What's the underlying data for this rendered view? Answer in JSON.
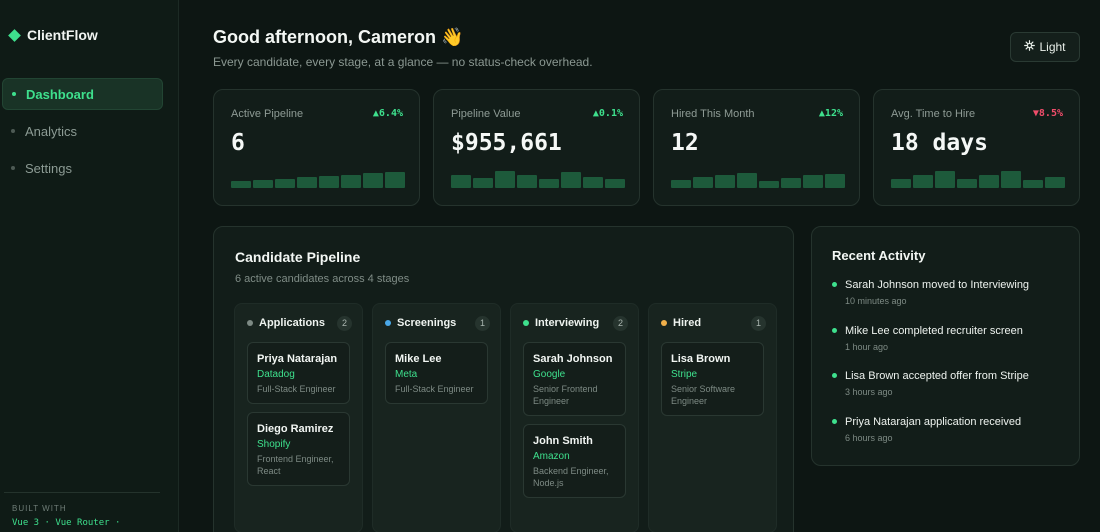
{
  "app": {
    "name": "ClientFlow"
  },
  "sidebar": {
    "items": [
      {
        "label": "Dashboard",
        "active": true
      },
      {
        "label": "Analytics",
        "active": false
      },
      {
        "label": "Settings",
        "active": false
      }
    ],
    "built_with_label": "BUILT WITH",
    "built_with_stack": "Vue 3 · Vue Router ·"
  },
  "header": {
    "greeting": "Good afternoon, Cameron",
    "greeting_emoji": "👋",
    "subtitle": "Every candidate, every stage, at a glance — no status-check overhead.",
    "theme_toggle": {
      "icon": "sun-icon",
      "label": "Light"
    }
  },
  "stats": [
    {
      "label": "Active Pipeline",
      "value": "6",
      "delta": "▲6.4%",
      "trend": "up",
      "spark": [
        0.35,
        0.4,
        0.45,
        0.55,
        0.6,
        0.65,
        0.75,
        0.8
      ]
    },
    {
      "label": "Pipeline Value",
      "value": "$955,661",
      "delta": "▲0.1%",
      "trend": "up",
      "spark": [
        0.65,
        0.5,
        0.85,
        0.65,
        0.45,
        0.8,
        0.55,
        0.45
      ]
    },
    {
      "label": "Hired This Month",
      "value": "12",
      "delta": "▲12%",
      "trend": "up",
      "spark": [
        0.4,
        0.55,
        0.65,
        0.75,
        0.35,
        0.5,
        0.65,
        0.7
      ]
    },
    {
      "label": "Avg. Time to Hire",
      "value": "18 days",
      "delta": "▼8.5%",
      "trend": "down",
      "spark": [
        0.45,
        0.65,
        0.85,
        0.45,
        0.65,
        0.85,
        0.4,
        0.55
      ]
    }
  ],
  "pipeline": {
    "title": "Candidate Pipeline",
    "subtitle": "6 active candidates across 4 stages",
    "columns": [
      {
        "name": "Applications",
        "color": "#7d8a84",
        "count": "2",
        "candidates": [
          {
            "name": "Priya Natarajan",
            "company": "Datadog",
            "role": "Full-Stack Engineer"
          },
          {
            "name": "Diego Ramirez",
            "company": "Shopify",
            "role": "Frontend Engineer, React"
          }
        ]
      },
      {
        "name": "Screenings",
        "color": "#4aa8e8",
        "count": "1",
        "candidates": [
          {
            "name": "Mike Lee",
            "company": "Meta",
            "role": "Full-Stack Engineer"
          }
        ]
      },
      {
        "name": "Interviewing",
        "color": "#3ee08d",
        "count": "2",
        "candidates": [
          {
            "name": "Sarah Johnson",
            "company": "Google",
            "role": "Senior Frontend Engineer"
          },
          {
            "name": "John Smith",
            "company": "Amazon",
            "role": "Backend Engineer, Node.js"
          }
        ]
      },
      {
        "name": "Hired",
        "color": "#f0b04a",
        "count": "1",
        "candidates": [
          {
            "name": "Lisa Brown",
            "company": "Stripe",
            "role": "Senior Software Engineer"
          }
        ]
      }
    ]
  },
  "activity": {
    "title": "Recent Activity",
    "items": [
      {
        "text": "Sarah Johnson moved to Interviewing",
        "time": "10 minutes ago"
      },
      {
        "text": "Mike Lee completed recruiter screen",
        "time": "1 hour ago"
      },
      {
        "text": "Lisa Brown accepted offer from Stripe",
        "time": "3 hours ago"
      },
      {
        "text": "Priya Natarajan application received",
        "time": "6 hours ago"
      }
    ]
  }
}
